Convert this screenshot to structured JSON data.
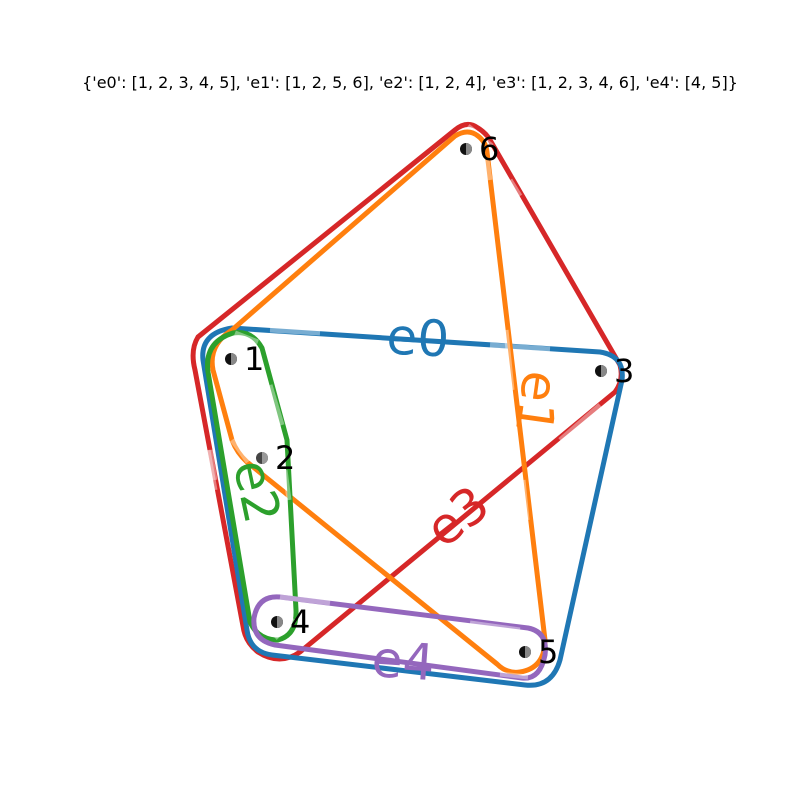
{
  "title": "{'e0': [1, 2, 3, 4, 5], 'e1': [1, 2, 5, 6], 'e2': [1, 2, 4], 'e3': [1, 2, 3, 4, 6], 'e4': [4, 5]}",
  "nodes": [
    {
      "id": "1",
      "label": "1"
    },
    {
      "id": "2",
      "label": "2"
    },
    {
      "id": "3",
      "label": "3"
    },
    {
      "id": "4",
      "label": "4"
    },
    {
      "id": "5",
      "label": "5"
    },
    {
      "id": "6",
      "label": "6"
    }
  ],
  "edges": [
    {
      "id": "e0",
      "label": "e0",
      "members": [
        "1",
        "2",
        "3",
        "4",
        "5"
      ],
      "color": "#1f77b4"
    },
    {
      "id": "e1",
      "label": "e1",
      "members": [
        "1",
        "2",
        "5",
        "6"
      ],
      "color": "#ff7f0e"
    },
    {
      "id": "e2",
      "label": "e2",
      "members": [
        "1",
        "2",
        "4"
      ],
      "color": "#2ca02c"
    },
    {
      "id": "e3",
      "label": "e3",
      "members": [
        "1",
        "2",
        "3",
        "4",
        "6"
      ],
      "color": "#d62728"
    },
    {
      "id": "e4",
      "label": "e4",
      "members": [
        "4",
        "5"
      ],
      "color": "#9467bd"
    }
  ]
}
